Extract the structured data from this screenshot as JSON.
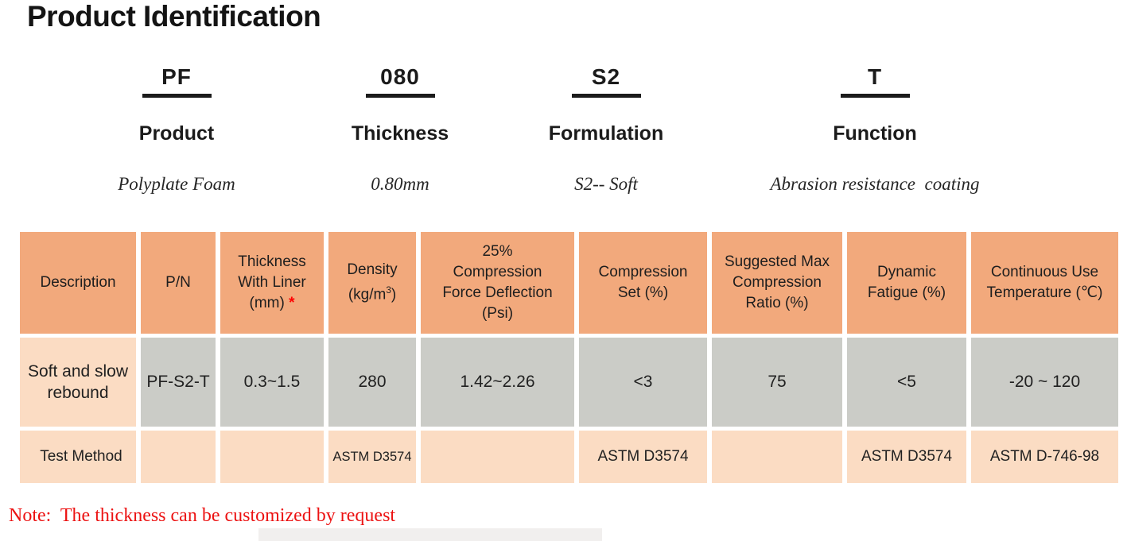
{
  "page": {
    "title": "Product Identification"
  },
  "code_breakdown": [
    {
      "code": "PF",
      "label": "Product",
      "description": "Polyplate Foam"
    },
    {
      "code": "080",
      "label": "Thickness",
      "description": "0.80mm"
    },
    {
      "code": "S2",
      "label": "Formulation",
      "description": "S2-- Soft"
    },
    {
      "code": "T",
      "label": "Function",
      "description": "Abrasion resistance  coating"
    }
  ],
  "table": {
    "headers": [
      {
        "lines": [
          "Description"
        ]
      },
      {
        "lines": [
          "P/N"
        ]
      },
      {
        "lines": [
          "Thickness",
          "With Liner",
          "(mm) *"
        ],
        "red_star": true
      },
      {
        "lines": [
          "Density",
          "(kg/m3)"
        ],
        "sup3": true
      },
      {
        "lines": [
          "25%",
          "Compression",
          "Force Deflection",
          "(Psi)"
        ]
      },
      {
        "lines": [
          "Compression",
          "Set (%)"
        ]
      },
      {
        "lines": [
          "Suggested Max",
          "Compression",
          "Ratio (%)"
        ]
      },
      {
        "lines": [
          "Dynamic",
          "Fatigue (%)"
        ]
      },
      {
        "lines": [
          "Continuous Use",
          "Temperature (℃)"
        ]
      }
    ],
    "rows": [
      {
        "name": "product-row",
        "label": "Soft and slow rebound",
        "label_style": "peach",
        "cells_style": "gray",
        "cells": [
          "PF-S2-T",
          "0.3~1.5",
          "280",
          "1.42~2.26",
          "<3",
          "75",
          "<5",
          "-20 ~ 120"
        ]
      },
      {
        "name": "test-method-row",
        "label": "Test Method",
        "label_style": "test",
        "cells_style": "test",
        "cells": [
          "",
          "",
          "ASTM D3574",
          "",
          "ASTM D3574",
          "",
          "ASTM D3574",
          "ASTM D-746-98"
        ]
      }
    ]
  },
  "note": "Note:  The thickness can be customized by request",
  "colors": {
    "header_orange": "#f2a97c",
    "cell_gray": "#cbccc7",
    "cell_peach": "#fbdcc3",
    "note_red": "#ec1212",
    "asterisk_red": "#ff0000",
    "text_black": "#1c1c1c"
  }
}
